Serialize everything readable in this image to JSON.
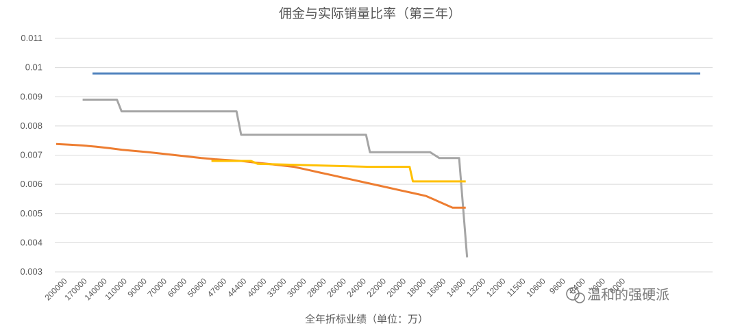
{
  "chart_data": {
    "type": "line",
    "title": "佣金与实际销量比率（第三年）",
    "xlabel": "全年折标业绩（单位：万）",
    "ylabel": "",
    "ylim": [
      0.003,
      0.011
    ],
    "yticks": [
      "0.003",
      "0.004",
      "0.005",
      "0.006",
      "0.007",
      "0.008",
      "0.009",
      "0.01",
      "0.011"
    ],
    "grid": true,
    "legend": "none",
    "categories": [
      "200000",
      "170000",
      "140000",
      "110000",
      "90000",
      "70000",
      "60000",
      "50600",
      "47600",
      "44400",
      "40000",
      "33000",
      "30000",
      "28000",
      "26000",
      "24000",
      "22000",
      "20000",
      "18000",
      "16800",
      "14800",
      "13200",
      "12000",
      "11500",
      "10600",
      "9600",
      "8400",
      "7600",
      "6000",
      "",
      "",
      "",
      ""
    ],
    "series": [
      {
        "color": "#4e81bd",
        "x": [
          5.5,
          97.5
        ],
        "values": [
          0.0098,
          0.0098
        ]
      },
      {
        "color": "#a5a5a5",
        "x": [
          4,
          9.2,
          9.9,
          27.3,
          28,
          46.9,
          47.5,
          52.2,
          53,
          56.6,
          58,
          60.6,
          61,
          62.2
        ],
        "values": [
          0.0089,
          0.0089,
          0.0085,
          0.0085,
          0.0077,
          0.0077,
          0.0071,
          0.0071,
          0.0071,
          0.0071,
          0.0069,
          0.0069,
          0.0069,
          0.0035
        ]
      },
      {
        "color": "#ed7d31",
        "x": [
          0,
          2,
          4,
          6,
          8,
          10,
          12,
          14,
          16,
          18,
          20,
          22,
          24,
          26,
          28,
          30,
          32,
          34,
          36,
          38,
          40,
          42,
          44,
          46,
          48,
          50,
          52,
          54,
          56,
          58,
          60,
          62
        ],
        "values": [
          0.00738,
          0.00736,
          0.00733,
          0.00729,
          0.00724,
          0.00718,
          0.00714,
          0.0071,
          0.00705,
          0.007,
          0.00695,
          0.0069,
          0.00686,
          0.00683,
          0.0068,
          0.00675,
          0.0067,
          0.00665,
          0.0066,
          0.0065,
          0.0064,
          0.0063,
          0.0062,
          0.0061,
          0.006,
          0.0059,
          0.0058,
          0.0057,
          0.0056,
          0.0054,
          0.0052,
          0.0052
        ]
      },
      {
        "color": "#ffc000",
        "x": [
          23.5,
          29.5,
          30.5,
          47.5,
          48,
          53.5,
          54,
          62
        ],
        "values": [
          0.0068,
          0.0068,
          0.0067,
          0.0066,
          0.0066,
          0.0066,
          0.0061,
          0.0061
        ]
      }
    ]
  },
  "watermark": {
    "text": "温和的强硬派",
    "icon": "wechat-icon"
  }
}
